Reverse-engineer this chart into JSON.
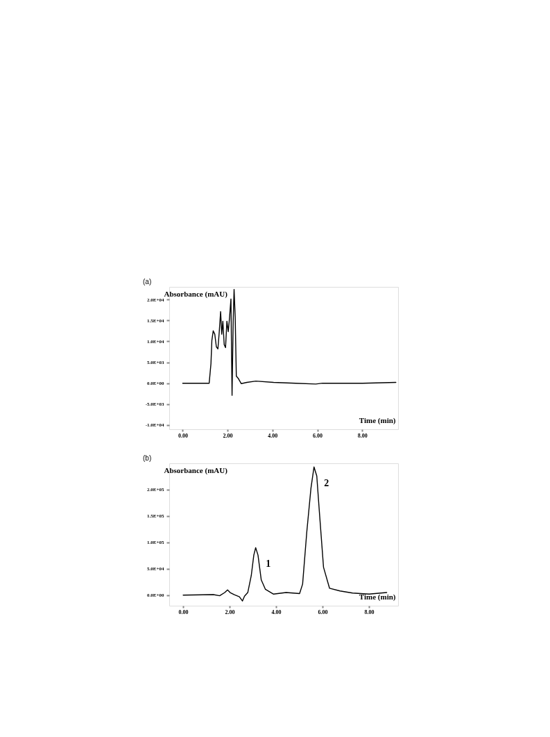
{
  "chart_data": [
    {
      "type": "line",
      "title": "(a)",
      "xlabel": "Time (min)",
      "ylabel": "Absorbance (mAU)",
      "x": [
        0,
        1.18,
        1.26,
        1.3,
        1.36,
        1.43,
        1.5,
        1.57,
        1.63,
        1.69,
        1.74,
        1.79,
        1.85,
        1.91,
        1.97,
        2.03,
        2.09,
        2.15,
        2.2,
        2.25,
        2.29,
        2.34,
        2.39,
        2.47,
        2.61,
        2.86,
        3.26,
        4.05,
        5.04,
        5.93,
        6.23,
        8.01,
        9.5
      ],
      "series": [
        {
          "color": "#000000",
          "values": [
            0,
            0,
            4700,
            10200,
            12500,
            11700,
            8700,
            8200,
            12300,
            17100,
            11700,
            14800,
            9200,
            8500,
            14800,
            12300,
            15800,
            20100,
            -2900,
            14800,
            22400,
            15800,
            1700,
            1200,
            -100,
            200,
            500,
            200,
            0,
            -200,
            0,
            0,
            200
          ]
        }
      ],
      "xlim": [
        -0.6,
        9.6
      ],
      "ylim": [
        -11000,
        23000
      ],
      "xticks": [
        {
          "value": 0,
          "label": "0.00"
        },
        {
          "value": 2,
          "label": "2.00"
        },
        {
          "value": 4,
          "label": "4.00"
        },
        {
          "value": 6,
          "label": "6.00"
        },
        {
          "value": 8,
          "label": "8.00"
        }
      ],
      "yticks": [
        {
          "value": -10000,
          "label": "-1.0E+04"
        },
        {
          "value": -5000,
          "label": "-5.0E+03"
        },
        {
          "value": 0,
          "label": "0.0E+00"
        },
        {
          "value": 5000,
          "label": "5.0E+03"
        },
        {
          "value": 10000,
          "label": "1.0E+04"
        },
        {
          "value": 15000,
          "label": "1.5E+04"
        },
        {
          "value": 20000,
          "label": "2.0E+04"
        }
      ],
      "grid": false,
      "marker": "none",
      "line_style": "solid"
    },
    {
      "type": "line",
      "title": "(b)",
      "xlabel": "Time (min)",
      "ylabel": "Absorbance (mAU)",
      "x": [
        0,
        1.3,
        1.57,
        1.79,
        1.91,
        2.02,
        2.2,
        2.42,
        2.55,
        2.64,
        2.78,
        2.93,
        3.04,
        3.12,
        3.22,
        3.36,
        3.54,
        3.89,
        4.43,
        5.01,
        5.14,
        5.32,
        5.5,
        5.63,
        5.75,
        5.86,
        6.04,
        6.3,
        6.75,
        7.29,
        8.0,
        8.76
      ],
      "series": [
        {
          "color": "#000000",
          "values": [
            0,
            1000,
            -1000,
            5000,
            10000,
            5000,
            1000,
            -3000,
            -11000,
            -2000,
            5000,
            37000,
            76000,
            90000,
            76000,
            29000,
            11000,
            2000,
            5000,
            3000,
            21000,
            120000,
            203000,
            243000,
            226000,
            159000,
            53000,
            13000,
            8000,
            4000,
            2000,
            5000
          ]
        }
      ],
      "annotations": [
        {
          "text": "1",
          "x": 3.12,
          "y": 90000
        },
        {
          "text": "2",
          "x": 5.63,
          "y": 243000
        }
      ],
      "xlim": [
        -0.6,
        9.25
      ],
      "ylim": [
        -20000,
        250000
      ],
      "xticks": [
        {
          "value": 0,
          "label": "0.00"
        },
        {
          "value": 2,
          "label": "2.00"
        },
        {
          "value": 4,
          "label": "4.00"
        },
        {
          "value": 6,
          "label": "6.00"
        },
        {
          "value": 8,
          "label": "8.00"
        }
      ],
      "yticks": [
        {
          "value": 0,
          "label": "0.0E+00"
        },
        {
          "value": 50000,
          "label": "5.0E+04"
        },
        {
          "value": 100000,
          "label": "1.0E+05"
        },
        {
          "value": 150000,
          "label": "1.5E+05"
        },
        {
          "value": 200000,
          "label": "2.0E+05"
        }
      ],
      "grid": false,
      "marker": "none",
      "line_style": "solid"
    }
  ]
}
